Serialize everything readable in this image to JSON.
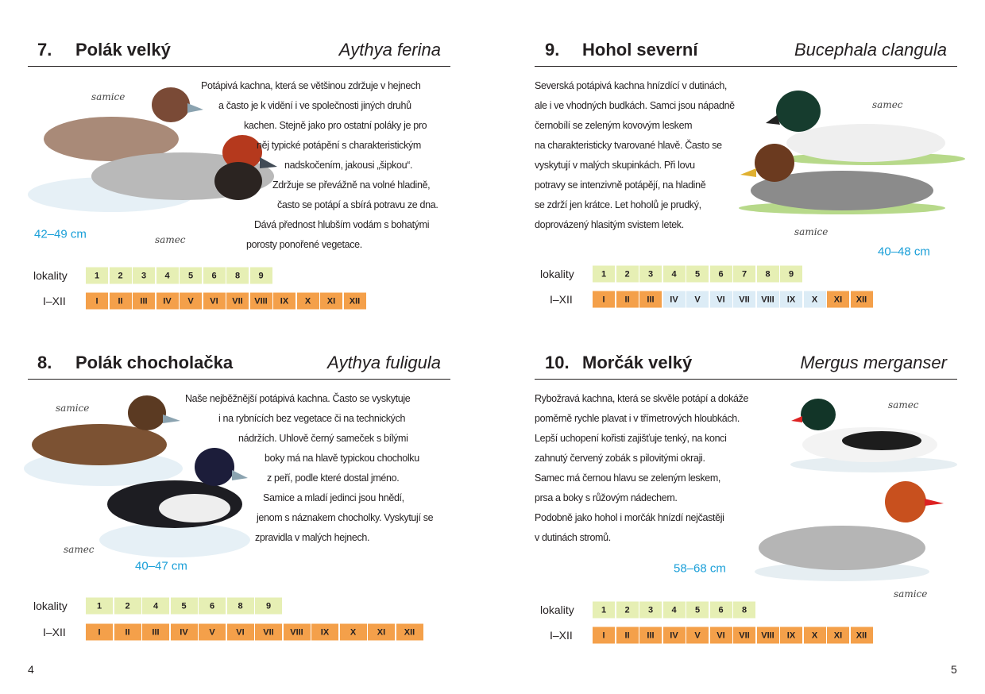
{
  "pages": [
    {
      "number": "4",
      "entries": [
        {
          "number": "7.",
          "name": "Polák velký",
          "latin": "Aythya ferina",
          "text": [
            "Potápivá kachna, která se většinou zdržuje v hejnech",
            "a často je k vidění i ve společnosti jiných druhů",
            "kachen. Stejně jako pro ostatní poláky je pro",
            "něj typické potápění s charakteristickým",
            "nadskočením, jakousi „šipkou“.",
            "Zdržuje se převážně na volné hladině,",
            "často se potápí a sbírá potravu ze dna.",
            "Dává přednost hlubším vodám s bohatými",
            "porosty ponořené vegetace."
          ],
          "size": "42–49 cm",
          "birds": [
            "samice",
            "samec"
          ],
          "localities_label": "lokality",
          "localities": [
            "1",
            "2",
            "3",
            "4",
            "5",
            "6",
            "8",
            "9"
          ],
          "months_label": "I–XII",
          "months": [
            "I",
            "II",
            "III",
            "IV",
            "V",
            "VI",
            "VII",
            "VIII",
            "IX",
            "X",
            "XI",
            "XII"
          ],
          "months_active": [
            true,
            true,
            true,
            true,
            true,
            true,
            true,
            true,
            true,
            true,
            true,
            true
          ]
        },
        {
          "number": "8.",
          "name": "Polák chocholačka",
          "latin": "Aythya fuligula",
          "text": [
            "Naše nejběžnější potápivá kachna. Často se vyskytuje",
            "i na rybnících bez vegetace či na technických",
            "nádržích. Uhlově černý sameček s bílými",
            "boky má na hlavě typickou chocholku",
            "z peří, podle které dostal jméno.",
            "Samice a mladí jedinci jsou hnědí,",
            "jenom s náznakem chocholky. Vyskytují se",
            "zpravidla v malých hejnech."
          ],
          "size": "40–47 cm",
          "birds": [
            "samice",
            "samec"
          ],
          "localities_label": "lokality",
          "localities": [
            "1",
            "2",
            "4",
            "5",
            "6",
            "8",
            "9"
          ],
          "months_label": "I–XII",
          "months": [
            "I",
            "II",
            "III",
            "IV",
            "V",
            "VI",
            "VII",
            "VIII",
            "IX",
            "X",
            "XI",
            "XII"
          ],
          "months_active": [
            true,
            true,
            true,
            true,
            true,
            true,
            true,
            true,
            true,
            true,
            true,
            true
          ]
        }
      ]
    },
    {
      "number": "5",
      "entries": [
        {
          "number": "9.",
          "name": "Hohol severní",
          "latin": "Bucephala clangula",
          "text": [
            "Severská potápivá kachna hnízdící v dutinách,",
            "ale i ve vhodných budkách. Samci jsou nápadně",
            "černobílí se zeleným kovovým leskem",
            "na charakteristicky tvarované hlavě. Často se",
            "vyskytují v malých skupinkách. Při lovu",
            "potravy se intenzivně potápějí, na hladině",
            "se zdrží jen krátce. Let hoholů je prudký,",
            "doprovázený hlasitým svistem letek."
          ],
          "size": "40–48 cm",
          "birds": [
            "samec",
            "samice"
          ],
          "localities_label": "lokality",
          "localities": [
            "1",
            "2",
            "3",
            "4",
            "5",
            "6",
            "7",
            "8",
            "9"
          ],
          "months_label": "I–XII",
          "months": [
            "I",
            "II",
            "III",
            "IV",
            "V",
            "VI",
            "VII",
            "VIII",
            "IX",
            "X",
            "XI",
            "XII"
          ],
          "months_active": [
            true,
            true,
            true,
            false,
            false,
            false,
            false,
            false,
            false,
            false,
            true,
            true
          ]
        },
        {
          "number": "10.",
          "name": "Morčák velký",
          "latin": "Mergus merganser",
          "text": [
            "Rybožravá kachna, která se skvěle potápí a dokáže",
            "poměrně rychle plavat i v třímetrových hloubkách.",
            "Lepší  uchopení kořisti zajišťuje tenký, na konci",
            "zahnutý červený zobák s pilovitými okraji.",
            "Samec má černou hlavu se zeleným leskem,",
            "prsa a boky s růžovým nádechem.",
            "Podobně jako hohol i morčák hnízdí nejčastěji",
            "v dutinách stromů."
          ],
          "size": "58–68 cm",
          "birds": [
            "samec",
            "samice"
          ],
          "localities_label": "lokality",
          "localities": [
            "1",
            "2",
            "3",
            "4",
            "5",
            "6",
            "8"
          ],
          "months_label": "I–XII",
          "months": [
            "I",
            "II",
            "III",
            "IV",
            "V",
            "VI",
            "VII",
            "VIII",
            "IX",
            "X",
            "XI",
            "XII"
          ],
          "months_active": [
            true,
            true,
            true,
            true,
            true,
            true,
            true,
            true,
            true,
            true,
            true,
            true
          ]
        }
      ]
    }
  ]
}
